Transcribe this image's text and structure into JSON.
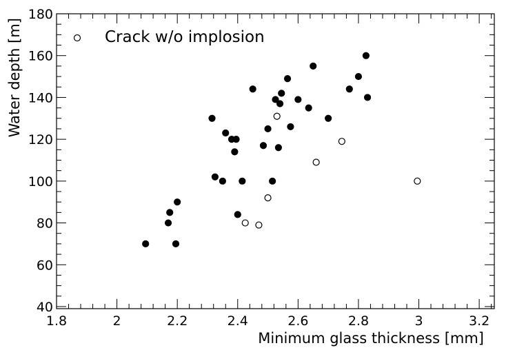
{
  "chart_data": {
    "type": "scatter",
    "xlabel": "Minimum glass thickness [mm]",
    "ylabel": "Water depth [m]",
    "xlim": [
      1.8,
      3.25
    ],
    "ylim": [
      39,
      180
    ],
    "x_ticks": [
      1.8,
      2,
      2.2,
      2.4,
      2.6,
      2.8,
      3,
      3.2
    ],
    "x_tick_labels": [
      "1.8",
      "2",
      "2.2",
      "2.4",
      "2.6",
      "2.8",
      "3",
      "3.2"
    ],
    "y_ticks": [
      40,
      60,
      80,
      100,
      120,
      140,
      160,
      180
    ],
    "y_tick_labels": [
      "40",
      "60",
      "80",
      "100",
      "120",
      "140",
      "160",
      "180"
    ],
    "grid": false,
    "legend_position": "top-left",
    "series": [
      {
        "marker": "filled-circle",
        "color": "#000000",
        "points": [
          [
            2.095,
            70
          ],
          [
            2.17,
            80
          ],
          [
            2.175,
            85
          ],
          [
            2.195,
            70
          ],
          [
            2.2,
            90
          ],
          [
            2.315,
            130
          ],
          [
            2.325,
            102
          ],
          [
            2.35,
            100
          ],
          [
            2.36,
            123
          ],
          [
            2.38,
            120
          ],
          [
            2.39,
            114
          ],
          [
            2.395,
            120
          ],
          [
            2.4,
            84
          ],
          [
            2.415,
            100
          ],
          [
            2.45,
            144
          ],
          [
            2.485,
            117
          ],
          [
            2.5,
            125
          ],
          [
            2.515,
            100
          ],
          [
            2.525,
            139
          ],
          [
            2.535,
            116
          ],
          [
            2.54,
            137
          ],
          [
            2.545,
            142
          ],
          [
            2.565,
            149
          ],
          [
            2.575,
            126
          ],
          [
            2.6,
            139
          ],
          [
            2.635,
            135
          ],
          [
            2.65,
            155
          ],
          [
            2.7,
            130
          ],
          [
            2.77,
            144
          ],
          [
            2.8,
            150
          ],
          [
            2.825,
            160
          ],
          [
            2.83,
            140
          ]
        ]
      },
      {
        "name": "Crack w/o implosion",
        "marker": "open-circle",
        "color": "#000000",
        "points": [
          [
            2.425,
            80
          ],
          [
            2.47,
            79
          ],
          [
            2.5,
            92
          ],
          [
            2.53,
            131
          ],
          [
            2.66,
            109
          ],
          [
            2.745,
            119
          ],
          [
            2.995,
            100
          ]
        ]
      }
    ]
  }
}
